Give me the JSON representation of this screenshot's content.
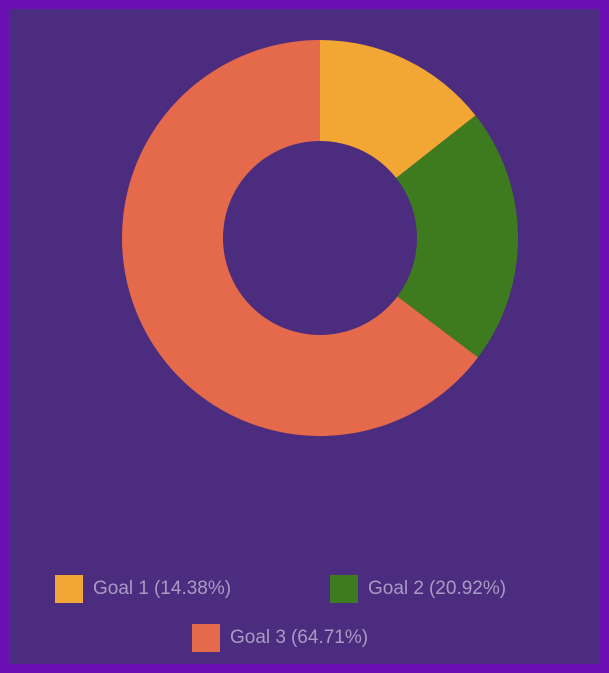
{
  "chart_data": {
    "type": "pie",
    "donut": true,
    "categories": [
      "Goal 1",
      "Goal 2",
      "Goal 3"
    ],
    "values": [
      14.38,
      20.92,
      64.71
    ],
    "value_labels": [
      "(14.38%)",
      "(20.92%)",
      "(64.71%)"
    ],
    "colors": [
      "#f2a634",
      "#3d7b1e",
      "#e46a4b"
    ],
    "legend": "bottom"
  }
}
